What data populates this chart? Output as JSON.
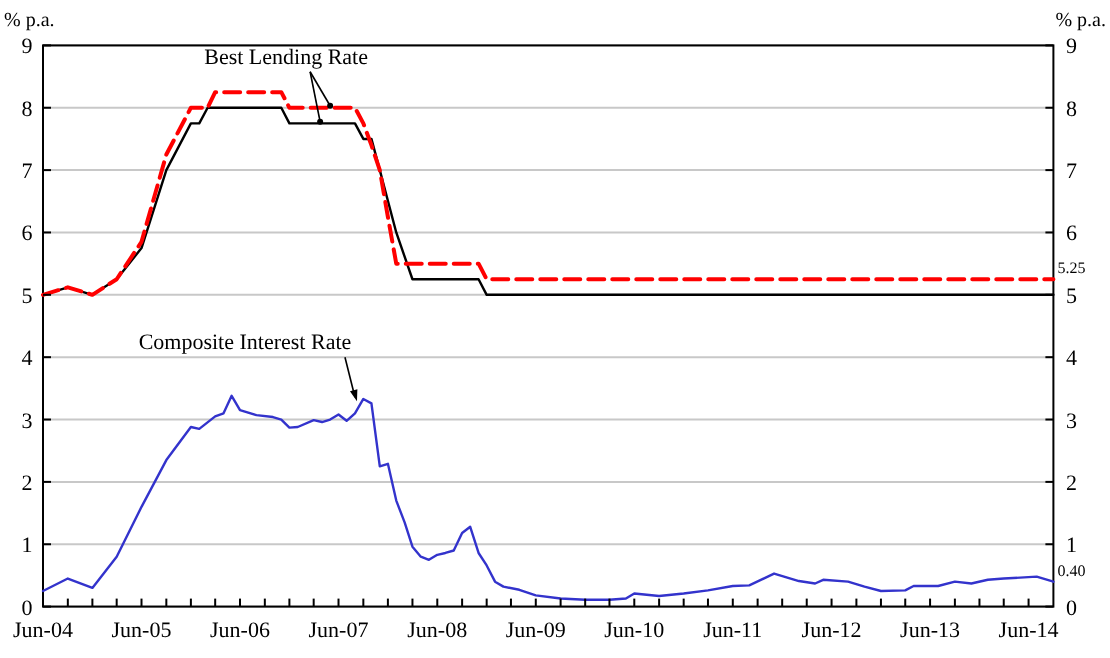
{
  "chart_data": {
    "type": "line",
    "ylabel": "% p.a.",
    "y2label": "% p.a.",
    "xlim": [
      "2004-06",
      "2014-09"
    ],
    "xticks": [
      {
        "value": "2004-06",
        "label": "Jun-04"
      },
      {
        "value": "2004-09",
        "label": null
      },
      {
        "value": "2004-12",
        "label": null
      },
      {
        "value": "2005-03",
        "label": null
      },
      {
        "value": "2005-06",
        "label": "Jun-05"
      },
      {
        "value": "2005-09",
        "label": null
      },
      {
        "value": "2005-12",
        "label": null
      },
      {
        "value": "2006-03",
        "label": null
      },
      {
        "value": "2006-06",
        "label": "Jun-06"
      },
      {
        "value": "2006-09",
        "label": null
      },
      {
        "value": "2006-12",
        "label": null
      },
      {
        "value": "2007-03",
        "label": null
      },
      {
        "value": "2007-06",
        "label": "Jun-07"
      },
      {
        "value": "2007-09",
        "label": null
      },
      {
        "value": "2007-12",
        "label": null
      },
      {
        "value": "2008-03",
        "label": null
      },
      {
        "value": "2008-06",
        "label": "Jun-08"
      },
      {
        "value": "2008-09",
        "label": null
      },
      {
        "value": "2008-12",
        "label": null
      },
      {
        "value": "2009-03",
        "label": null
      },
      {
        "value": "2009-06",
        "label": "Jun-09"
      },
      {
        "value": "2009-09",
        "label": null
      },
      {
        "value": "2009-12",
        "label": null
      },
      {
        "value": "2010-03",
        "label": null
      },
      {
        "value": "2010-06",
        "label": "Jun-10"
      },
      {
        "value": "2010-09",
        "label": null
      },
      {
        "value": "2010-12",
        "label": null
      },
      {
        "value": "2011-03",
        "label": null
      },
      {
        "value": "2011-06",
        "label": "Jun-11"
      },
      {
        "value": "2011-09",
        "label": null
      },
      {
        "value": "2011-12",
        "label": null
      },
      {
        "value": "2012-03",
        "label": null
      },
      {
        "value": "2012-06",
        "label": "Jun-12"
      },
      {
        "value": "2012-09",
        "label": null
      },
      {
        "value": "2012-12",
        "label": null
      },
      {
        "value": "2013-03",
        "label": null
      },
      {
        "value": "2013-06",
        "label": "Jun-13"
      },
      {
        "value": "2013-09",
        "label": null
      },
      {
        "value": "2013-12",
        "label": null
      },
      {
        "value": "2014-03",
        "label": null
      },
      {
        "value": "2014-06",
        "label": "Jun-14"
      }
    ],
    "ylim": [
      0,
      9
    ],
    "yticks": [
      0,
      1,
      2,
      3,
      4,
      5,
      6,
      7,
      8,
      9
    ],
    "y2lim": [
      0,
      9
    ],
    "y2ticks": [
      0,
      1,
      2,
      3,
      4,
      5,
      6,
      7,
      8,
      9
    ],
    "grid": "y",
    "marker": "none",
    "series": [
      {
        "color": "#000000",
        "line_style": "solid",
        "x": [
          "2004-06",
          "2004-09",
          "2004-12",
          "2005-03",
          "2005-06",
          "2005-09",
          "2005-12",
          "2006-01",
          "2006-02",
          "2006-11",
          "2006-12",
          "2007-08",
          "2007-09",
          "2007-10",
          "2007-11",
          "2008-01",
          "2008-03",
          "2008-11",
          "2008-12",
          "2014-09"
        ],
        "values": [
          5,
          5.12,
          5,
          5.25,
          5.75,
          7,
          7.75,
          7.75,
          8,
          8,
          7.75,
          7.75,
          7.5,
          7.5,
          7,
          6,
          5.25,
          5.25,
          5,
          5
        ]
      },
      {
        "color": "#ff0000",
        "line_style": "dashed",
        "x": [
          "2004-06",
          "2004-09",
          "2004-12",
          "2005-03",
          "2005-06",
          "2005-09",
          "2005-12",
          "2006-02",
          "2006-03",
          "2006-11",
          "2006-12",
          "2007-08",
          "2007-09",
          "2007-10",
          "2007-11",
          "2007-12",
          "2008-01",
          "2008-11",
          "2008-12",
          "2014-09"
        ],
        "values": [
          5,
          5.12,
          5,
          5.25,
          5.85,
          7.25,
          8,
          8,
          8.25,
          8.25,
          8,
          8,
          7.75,
          7.4,
          7,
          6.25,
          5.5,
          5.5,
          5.25,
          5.25
        ]
      },
      {
        "color": "#3333cc",
        "line_style": "solid",
        "x": [
          "2004-06",
          "2004-09",
          "2004-12",
          "2005-03",
          "2005-06",
          "2005-09",
          "2005-12",
          "2006-01",
          "2006-03",
          "2006-04",
          "2006-05",
          "2006-06",
          "2006-08",
          "2006-10",
          "2006-11",
          "2006-12",
          "2007-01",
          "2007-03",
          "2007-04",
          "2007-05",
          "2007-06",
          "2007-07",
          "2007-08",
          "2007-09",
          "2007-10",
          "2007-11",
          "2007-12",
          "2008-01",
          "2008-02",
          "2008-03",
          "2008-04",
          "2008-05",
          "2008-06",
          "2008-07",
          "2008-08",
          "2008-09",
          "2008-10",
          "2008-11",
          "2008-12",
          "2009-01",
          "2009-02",
          "2009-04",
          "2009-06",
          "2009-09",
          "2009-12",
          "2010-03",
          "2010-05",
          "2010-06",
          "2010-09",
          "2010-12",
          "2011-03",
          "2011-06",
          "2011-08",
          "2011-11",
          "2012-02",
          "2012-04",
          "2012-05",
          "2012-08",
          "2012-10",
          "2012-12",
          "2013-03",
          "2013-04",
          "2013-07",
          "2013-09",
          "2013-11",
          "2014-01",
          "2014-03",
          "2014-07",
          "2014-09"
        ],
        "values": [
          0.25,
          0.45,
          0.3,
          0.8,
          1.6,
          2.35,
          2.88,
          2.85,
          3.05,
          3.1,
          3.38,
          3.15,
          3.07,
          3.04,
          3.0,
          2.87,
          2.88,
          2.99,
          2.96,
          3.0,
          3.08,
          2.98,
          3.1,
          3.33,
          3.26,
          2.25,
          2.29,
          1.7,
          1.35,
          0.96,
          0.8,
          0.75,
          0.83,
          0.86,
          0.9,
          1.18,
          1.28,
          0.86,
          0.66,
          0.4,
          0.32,
          0.27,
          0.18,
          0.13,
          0.11,
          0.11,
          0.13,
          0.21,
          0.17,
          0.21,
          0.26,
          0.33,
          0.34,
          0.53,
          0.41,
          0.37,
          0.43,
          0.4,
          0.32,
          0.25,
          0.26,
          0.33,
          0.33,
          0.4,
          0.37,
          0.43,
          0.45,
          0.48,
          0.4
        ]
      }
    ],
    "annotations": [
      {
        "text": "Best Lending Rate",
        "x": "2007-02",
        "y": 8.0
      },
      {
        "text": "Composite Interest Rate",
        "x": "2007-08",
        "y": 3.1
      },
      {
        "text": "5.25",
        "x": "2014-09",
        "y": 5.25
      },
      {
        "text": "0.40",
        "x": "2014-09",
        "y": 0.4
      }
    ]
  }
}
